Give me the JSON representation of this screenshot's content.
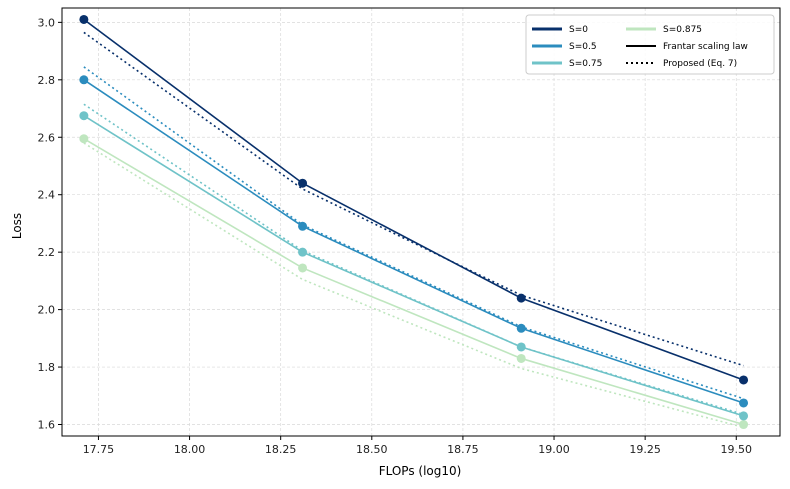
{
  "chart_data": {
    "type": "line",
    "title": "",
    "xlabel": "FLOPs (log10)",
    "ylabel": "Loss",
    "xlim": [
      17.65,
      19.62
    ],
    "ylim": [
      1.56,
      3.05
    ],
    "xticks": [
      17.75,
      18.0,
      18.25,
      18.5,
      18.75,
      19.0,
      19.25,
      19.5
    ],
    "yticks": [
      1.6,
      1.8,
      2.0,
      2.2,
      2.4,
      2.6,
      2.8,
      3.0
    ],
    "xtick_labels": [
      "17.75",
      "18.00",
      "18.25",
      "18.50",
      "18.75",
      "19.00",
      "19.25",
      "19.50"
    ],
    "ytick_labels": [
      "1.6",
      "1.8",
      "2.0",
      "2.2",
      "2.4",
      "2.6",
      "2.8",
      "3.0"
    ],
    "grid": true,
    "legend_position": "top-right",
    "x": [
      17.71,
      18.31,
      18.91,
      19.52
    ],
    "series": [
      {
        "name": "S=0",
        "color": "#08306b",
        "values": [
          3.01,
          2.44,
          2.04,
          1.755
        ],
        "fit": [
          2.965,
          2.42,
          2.05,
          1.805
        ]
      },
      {
        "name": "S=0.5",
        "color": "#2b8cbe",
        "values": [
          2.8,
          2.29,
          1.935,
          1.675
        ],
        "fit": [
          2.845,
          2.295,
          1.94,
          1.69
        ]
      },
      {
        "name": "S=0.75",
        "color": "#6fc3c8",
        "values": [
          2.675,
          2.2,
          1.87,
          1.63
        ],
        "fit": [
          2.715,
          2.205,
          1.87,
          1.635
        ]
      },
      {
        "name": "S=0.875",
        "color": "#bfe6bf",
        "values": [
          2.595,
          2.145,
          1.83,
          1.6
        ],
        "fit": [
          2.58,
          2.105,
          1.795,
          1.59
        ]
      }
    ],
    "legend_style_entries": [
      {
        "label": "Frantar scaling law",
        "style": "solid",
        "color": "#000000"
      },
      {
        "label": "Proposed (Eq. 7)",
        "style": "dotted",
        "color": "#000000"
      }
    ]
  }
}
